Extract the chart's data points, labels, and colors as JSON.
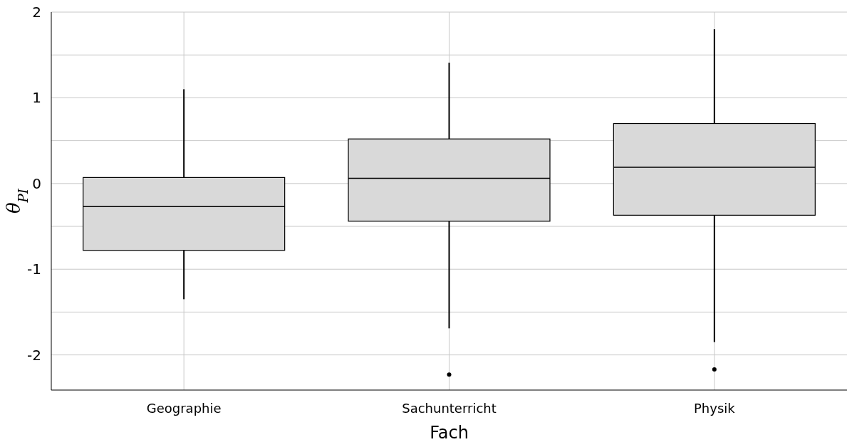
{
  "chart_data": {
    "type": "box",
    "xlabel": "Fach",
    "ylabel": "θ$_{PI}$",
    "categories": [
      "Geographie",
      "Sachunterricht",
      "Physik"
    ],
    "color": "#d9d9d9",
    "boxes": [
      {
        "low": -1.35,
        "q1": -0.78,
        "median": -0.27,
        "q3": 0.07,
        "high": 1.1
      },
      {
        "low": -1.69,
        "q1": -0.44,
        "median": 0.06,
        "q3": 0.52,
        "high": 1.41,
        "outliers": [
          -2.23
        ]
      },
      {
        "low": -1.85,
        "q1": -0.37,
        "median": 0.19,
        "q3": 0.7,
        "high": 1.8,
        "outliers": [
          -2.17
        ]
      }
    ],
    "ylim": [
      -2.41,
      2
    ],
    "yticks": [
      -2,
      {
        "value": -1.5,
        "label": null
      },
      -1,
      {
        "value": -0.5,
        "label": null
      },
      0,
      {
        "value": 0.5,
        "label": null
      },
      1,
      {
        "value": 1.5,
        "label": null
      },
      2
    ],
    "grid": true
  }
}
